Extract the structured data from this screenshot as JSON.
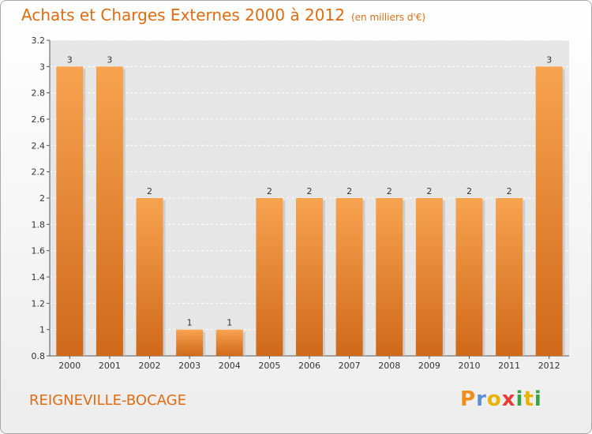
{
  "header": {
    "title": "Achats et Charges Externes 2000 à 2012",
    "subtitle": "(en milliers d'€)"
  },
  "footer": {
    "place": "REIGNEVILLE-BOCAGE",
    "logo": "Proxiti"
  },
  "colors": {
    "bar_top": "#f7a34f",
    "bar_bottom": "#d0691a",
    "accent": "#e06c10",
    "logo_letters": [
      "#f28c1a",
      "#5b8fd6",
      "#e8b400",
      "#e83b3b",
      "#3aa04a",
      "#e8b400",
      "#3aa04a"
    ]
  },
  "chart_data": {
    "type": "bar",
    "categories": [
      "2000",
      "2001",
      "2002",
      "2003",
      "2004",
      "2005",
      "2006",
      "2007",
      "2008",
      "2009",
      "2010",
      "2011",
      "2012"
    ],
    "values": [
      3,
      3,
      2,
      1,
      1,
      2,
      2,
      2,
      2,
      2,
      2,
      2,
      3
    ],
    "data_labels": [
      "3",
      "3",
      "2",
      "1",
      "1",
      "2",
      "2",
      "2",
      "2",
      "2",
      "2",
      "2",
      "3"
    ],
    "ylim": [
      0.8,
      3.2
    ],
    "yticks": [
      0.8,
      1,
      1.2,
      1.4,
      1.6,
      1.8,
      2,
      2.2,
      2.4,
      2.6,
      2.8,
      3,
      3.2
    ],
    "ytick_labels": [
      "0.8",
      "1",
      "1.2",
      "1.4",
      "1.6",
      "1.8",
      "2",
      "2.2",
      "2.4",
      "2.6",
      "2.8",
      "3",
      "3.2"
    ],
    "grid": true,
    "title": "Achats et Charges Externes 2000 à 2012",
    "xlabel": "",
    "ylabel": ""
  }
}
